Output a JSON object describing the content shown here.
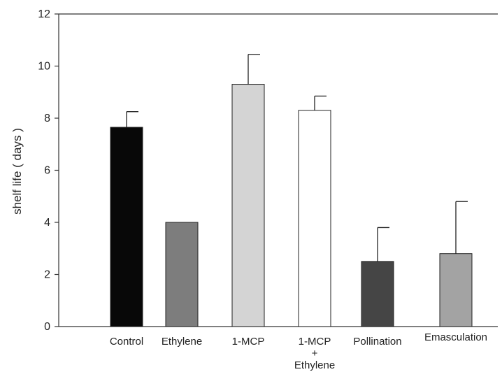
{
  "chart_data": {
    "type": "bar",
    "title": "",
    "xlabel": "",
    "ylabel": "shelf life ( days )",
    "ylim": [
      0,
      12
    ],
    "yticks": [
      0,
      2,
      4,
      6,
      8,
      10,
      12
    ],
    "grid": false,
    "legend": "none",
    "categories": [
      "Control",
      "Ethylene",
      "1-MCP",
      "1-MCP + Ethylene",
      "Pollination",
      "Emasculation"
    ],
    "category_lines": [
      [
        "Control"
      ],
      [
        "Ethylene"
      ],
      [
        "1-MCP"
      ],
      [
        "1-MCP",
        "+",
        "Ethylene"
      ],
      [
        "Pollination"
      ],
      [
        "Emasculation"
      ]
    ],
    "values": [
      7.65,
      4.0,
      9.3,
      8.3,
      2.5,
      2.8
    ],
    "errors": [
      0.6,
      0.0,
      1.15,
      0.55,
      1.3,
      2.0
    ],
    "colors": [
      "#080808",
      "#7d7d7d",
      "#d4d4d4",
      "#ffffff",
      "#454545",
      "#a3a3a3"
    ]
  }
}
